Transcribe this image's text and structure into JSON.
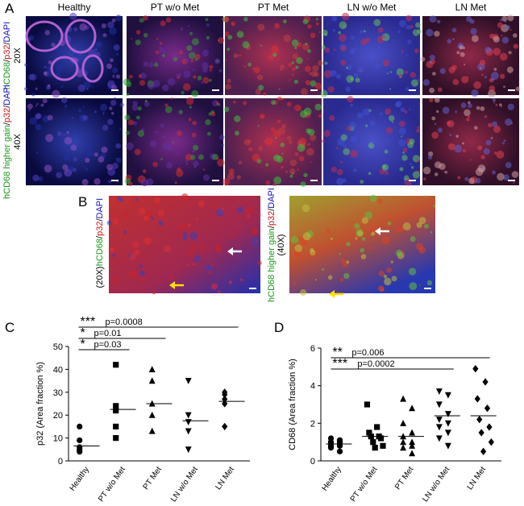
{
  "panels": [
    "A",
    "B",
    "C",
    "D"
  ],
  "image_columns": [
    "Healthy",
    "PT w/o Met",
    "PT Met",
    "LN w/o Met",
    "LN Met"
  ],
  "label_colors": [
    "#1a9a1a",
    "#000000",
    "#d01010",
    "#000000",
    "#1010c0"
  ],
  "row_labels": [
    {
      "parts": [
        "hCD68",
        "/",
        "p32",
        "/",
        "DAPI"
      ],
      "mag": "20X"
    },
    {
      "parts": [
        "hCD68 higher gain",
        "/",
        "p32",
        "/",
        "DAPI"
      ],
      "mag": "40X"
    }
  ],
  "b_labels": [
    {
      "parts": [
        "hCD68",
        "/",
        "p32",
        "/",
        "DAPI"
      ],
      "mag": "(20X)"
    },
    {
      "parts": [
        "hCD68 higher gain",
        "/",
        "p32",
        "/",
        "DAPI"
      ],
      "mag": "(40X)"
    }
  ],
  "chart_data": [
    {
      "type": "dot",
      "y_label": "p32 (Area fraction %)",
      "categories": [
        "Healthy",
        "PT w/o Met",
        "PT Met",
        "LN w/o Met",
        "LN Met"
      ],
      "markers": [
        "circle",
        "square",
        "triangle",
        "triangle-down",
        "diamond"
      ],
      "points": [
        [
          15,
          9,
          6,
          5,
          4
        ],
        [
          42,
          24,
          22,
          15,
          10
        ],
        [
          40,
          35,
          25,
          20,
          13
        ],
        [
          35,
          20,
          17,
          13,
          5
        ],
        [
          30,
          29,
          27,
          25,
          15
        ]
      ],
      "means": [
        6.5,
        22.5,
        25,
        17.5,
        26
      ],
      "ylim": [
        0,
        50
      ],
      "yticks": [
        0,
        10,
        20,
        30,
        40,
        50
      ],
      "comparisons": [
        {
          "span": [
            "Healthy",
            "LN Met"
          ],
          "stars": "***",
          "p": "p=0.0008"
        },
        {
          "span": [
            "Healthy",
            "PT Met"
          ],
          "stars": "*",
          "p": "p=0.01"
        },
        {
          "span": [
            "Healthy",
            "PT w/o Met"
          ],
          "stars": "*",
          "p": "p=0.03"
        }
      ]
    },
    {
      "type": "dot",
      "y_label": "CD68 (Area fraction %)",
      "categories": [
        "Healthy",
        "PT w/o Met",
        "PT Met",
        "LN w/o Met",
        "LN Met"
      ],
      "markers": [
        "circle",
        "square",
        "triangle",
        "triangle-down",
        "diamond"
      ],
      "points": [
        [
          1.2,
          1.1,
          1.0,
          1.0,
          0.9,
          0.9,
          0.8,
          0.8,
          0.7,
          0.5
        ],
        [
          3.0,
          1.8,
          1.5,
          1.3,
          1.3,
          1.2,
          1.0,
          0.8,
          0.7
        ],
        [
          3.3,
          2.8,
          2.0,
          1.5,
          1.3,
          1.0,
          1.0,
          0.8,
          0.7,
          0.4
        ],
        [
          3.7,
          3.5,
          3.0,
          2.5,
          2.2,
          2.0,
          1.8,
          1.5,
          1.2,
          0.8
        ],
        [
          4.9,
          4.2,
          3.3,
          2.8,
          2.2,
          1.8,
          1.5,
          1.0,
          0.5
        ]
      ],
      "means": [
        0.9,
        1.3,
        1.3,
        2.4,
        2.4
      ],
      "ylim": [
        0,
        6
      ],
      "yticks": [
        0,
        2,
        4,
        6
      ],
      "comparisons": [
        {
          "span": [
            "Healthy",
            "LN Met"
          ],
          "stars": "**",
          "p": "p=0.006"
        },
        {
          "span": [
            "Healthy",
            "LN w/o Met"
          ],
          "stars": "***",
          "p": "p=0.0002"
        }
      ]
    }
  ]
}
